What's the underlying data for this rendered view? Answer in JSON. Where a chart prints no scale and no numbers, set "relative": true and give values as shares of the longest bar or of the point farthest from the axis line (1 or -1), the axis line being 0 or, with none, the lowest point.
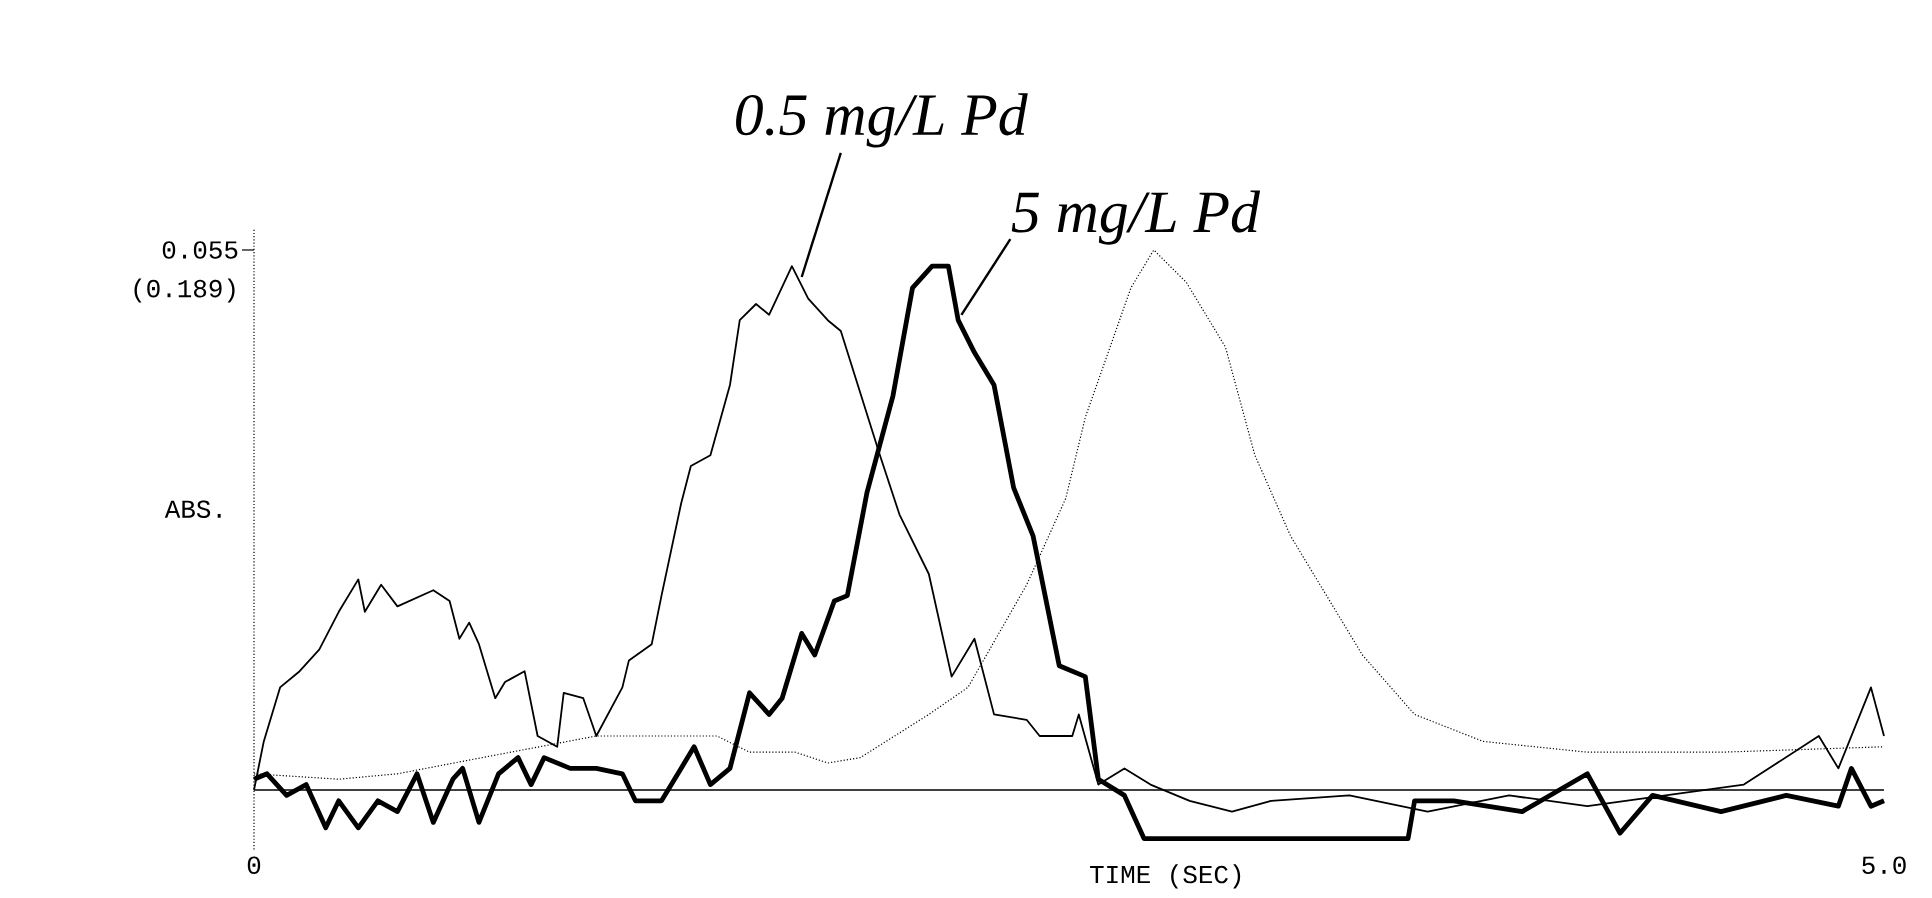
{
  "chart_data": {
    "type": "line",
    "relative": true,
    "xlabel": "TIME (SEC)",
    "ylabel": "ABS.",
    "xlim": [
      0,
      5
    ],
    "xticks": [
      0,
      {
        "value": 5,
        "label": "5.0"
      }
    ],
    "legend": false,
    "grid": false,
    "marker": "none",
    "annotations": [
      "0.055",
      "(0.189)"
    ],
    "series": [
      {
        "name": "0.5 mg/L Pd",
        "color": "#000000",
        "line_style": "solid",
        "x": [
          0.0,
          0.03,
          0.08,
          0.14,
          0.2,
          0.26,
          0.32,
          0.34,
          0.39,
          0.44,
          0.55,
          0.6,
          0.63,
          0.66,
          0.69,
          0.74,
          0.77,
          0.83,
          0.87,
          0.93,
          0.95,
          1.01,
          1.05,
          1.13,
          1.15,
          1.22,
          1.25,
          1.31,
          1.34,
          1.4,
          1.46,
          1.49,
          1.54,
          1.58,
          1.65,
          1.7,
          1.76,
          1.8,
          1.92,
          1.98,
          2.07,
          2.14,
          2.21,
          2.27,
          2.37,
          2.41,
          2.51,
          2.53,
          2.59,
          2.67,
          2.75,
          2.87,
          3.0,
          3.12,
          3.36,
          3.6,
          3.85,
          4.09,
          4.33,
          4.57,
          4.8,
          4.86,
          4.96,
          5.0
        ],
        "values": [
          0,
          0.09,
          0.19,
          0.22,
          0.26,
          0.33,
          0.39,
          0.33,
          0.38,
          0.34,
          0.37,
          0.35,
          0.28,
          0.31,
          0.27,
          0.17,
          0.2,
          0.22,
          0.1,
          0.08,
          0.18,
          0.17,
          0.1,
          0.19,
          0.24,
          0.27,
          0.36,
          0.53,
          0.6,
          0.62,
          0.75,
          0.87,
          0.9,
          0.88,
          0.97,
          0.91,
          0.87,
          0.85,
          0.62,
          0.51,
          0.4,
          0.21,
          0.28,
          0.14,
          0.13,
          0.1,
          0.1,
          0.14,
          0.01,
          0.04,
          0.01,
          -0.02,
          -0.04,
          -0.02,
          -0.01,
          -0.04,
          -0.01,
          -0.03,
          -0.01,
          0.01,
          0.1,
          0.04,
          0.19,
          0.1
        ]
      },
      {
        "name": "5 mg/L Pd",
        "color": "#000000",
        "line_style": "solid",
        "x": [
          0.0,
          0.04,
          0.1,
          0.16,
          0.22,
          0.26,
          0.32,
          0.38,
          0.44,
          0.5,
          0.55,
          0.61,
          0.64,
          0.69,
          0.75,
          0.81,
          0.85,
          0.89,
          0.97,
          1.05,
          1.13,
          1.17,
          1.25,
          1.31,
          1.35,
          1.4,
          1.46,
          1.52,
          1.58,
          1.62,
          1.68,
          1.72,
          1.78,
          1.82,
          1.88,
          1.96,
          2.02,
          2.08,
          2.13,
          2.16,
          2.21,
          2.27,
          2.33,
          2.39,
          2.43,
          2.47,
          2.55,
          2.59,
          2.67,
          2.73,
          3.54,
          3.56,
          3.68,
          3.89,
          4.09,
          4.19,
          4.29,
          4.5,
          4.7,
          4.86,
          4.9,
          4.96,
          5.0
        ],
        "values": [
          0.02,
          0.03,
          -0.01,
          0.01,
          -0.07,
          -0.02,
          -0.07,
          -0.02,
          -0.04,
          0.03,
          -0.06,
          0.02,
          0.04,
          -0.06,
          0.03,
          0.06,
          0.01,
          0.06,
          0.04,
          0.04,
          0.03,
          -0.02,
          -0.02,
          0.04,
          0.08,
          0.01,
          0.04,
          0.18,
          0.14,
          0.17,
          0.29,
          0.25,
          0.35,
          0.36,
          0.55,
          0.73,
          0.93,
          0.97,
          0.97,
          0.87,
          0.81,
          0.75,
          0.56,
          0.47,
          0.35,
          0.23,
          0.21,
          0.02,
          -0.01,
          -0.09,
          -0.09,
          -0.02,
          -0.02,
          -0.04,
          0.03,
          -0.08,
          -0.01,
          -0.04,
          -0.01,
          -0.03,
          0.04,
          -0.03,
          -0.02
        ]
      },
      {
        "color": "#000000",
        "line_style": "dotted",
        "x": [
          0,
          0.26,
          0.44,
          0.7,
          1.05,
          1.25,
          1.42,
          1.52,
          1.66,
          1.76,
          1.86,
          2.07,
          2.19,
          2.37,
          2.49,
          2.55,
          2.69,
          2.76,
          2.86,
          2.98,
          3.07,
          3.18,
          3.32,
          3.4,
          3.56,
          3.77,
          4.09,
          4.5,
          5.0
        ],
        "values": [
          0.03,
          0.02,
          0.03,
          0.06,
          0.1,
          0.1,
          0.1,
          0.07,
          0.07,
          0.05,
          0.06,
          0.14,
          0.19,
          0.38,
          0.54,
          0.69,
          0.93,
          1.0,
          0.94,
          0.82,
          0.62,
          0.47,
          0.33,
          0.25,
          0.14,
          0.09,
          0.07,
          0.07,
          0.08
        ]
      }
    ]
  }
}
